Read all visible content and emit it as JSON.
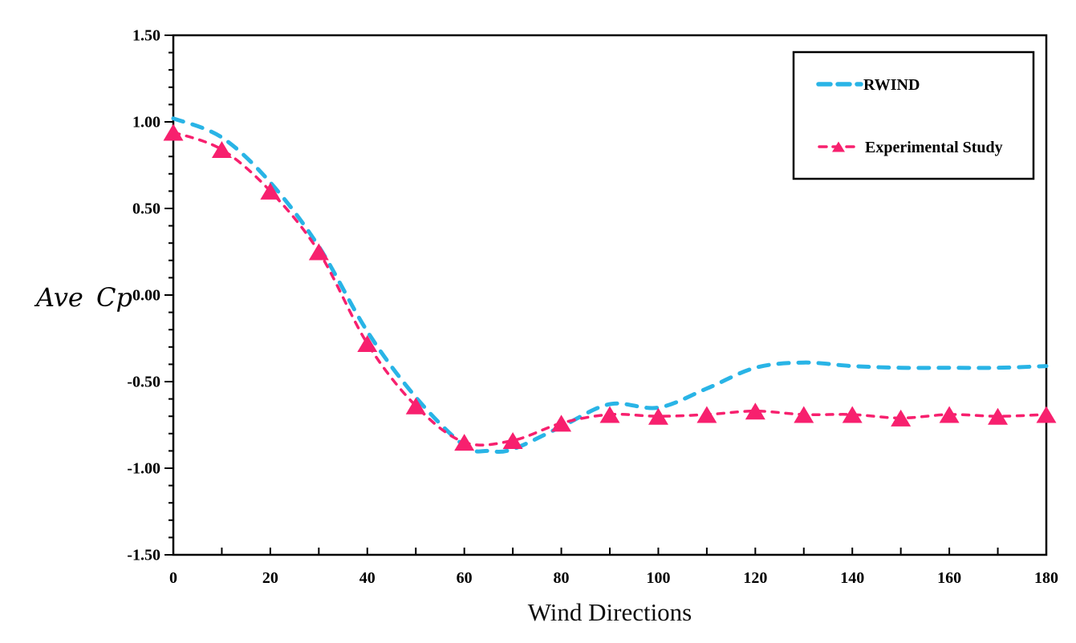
{
  "chart_data": {
    "type": "line",
    "title": "",
    "xlabel": "Wind Directions",
    "ylabel": "Ave Cp",
    "xlim": [
      0,
      180
    ],
    "ylim": [
      -1.5,
      1.5
    ],
    "x_major_ticks": [
      0,
      20,
      40,
      60,
      80,
      100,
      120,
      140,
      160,
      180
    ],
    "x_minor_step": 10,
    "y_tick_labels": [
      "1.50",
      "1.00",
      "0.50",
      "0.00",
      "-0.50",
      "-1.00",
      "-1.50"
    ],
    "y_major_step": 0.5,
    "y_minor_step": 0.1,
    "grid": false,
    "plot_border": "full-box",
    "legend_position": "top-right",
    "series": [
      {
        "name": "RWIND",
        "color": "#29b4e6",
        "style": "dashed",
        "marker": "none",
        "x": [
          0,
          10,
          20,
          30,
          40,
          50,
          60,
          65,
          70,
          80,
          90,
          100,
          110,
          120,
          130,
          140,
          150,
          160,
          170,
          180
        ],
        "y": [
          1.02,
          0.91,
          0.65,
          0.28,
          -0.21,
          -0.59,
          -0.87,
          -0.9,
          -0.89,
          -0.76,
          -0.63,
          -0.65,
          -0.54,
          -0.42,
          -0.39,
          -0.41,
          -0.42,
          -0.42,
          -0.42,
          -0.41
        ]
      },
      {
        "name": "Experimental Study",
        "color": "#f7206e",
        "style": "dashed",
        "marker": "triangle",
        "x": [
          0,
          10,
          20,
          30,
          40,
          50,
          60,
          70,
          80,
          90,
          100,
          110,
          120,
          130,
          140,
          150,
          160,
          170,
          180
        ],
        "y": [
          0.94,
          0.84,
          0.6,
          0.25,
          -0.28,
          -0.64,
          -0.85,
          -0.84,
          -0.74,
          -0.69,
          -0.7,
          -0.69,
          -0.67,
          -0.69,
          -0.69,
          -0.71,
          -0.69,
          -0.7,
          -0.69
        ]
      }
    ]
  }
}
